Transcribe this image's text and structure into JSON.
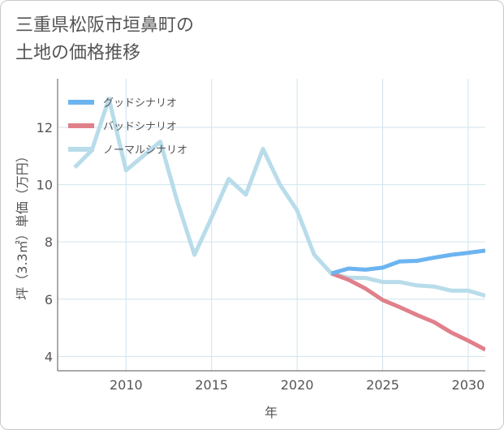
{
  "title": {
    "line1": "三重県松阪市垣鼻町の",
    "line2": "土地の価格推移"
  },
  "colors": {
    "good": "#6cb4f0",
    "bad": "#e0808a",
    "normal": "#b8dcea",
    "grid": "#cfe3ee",
    "axis": "#555555",
    "text": "#555555"
  },
  "chart_data": {
    "type": "line",
    "title": "三重県松阪市垣鼻町の土地の価格推移",
    "xlabel": "年",
    "ylabel": "坪（3.3㎡）単価（万円）",
    "xlim": [
      2006,
      2031
    ],
    "ylim": [
      3.5,
      13.7
    ],
    "xticks": [
      2010,
      2015,
      2020,
      2025,
      2030
    ],
    "yticks": [
      4,
      6,
      8,
      10,
      12
    ],
    "grid": true,
    "legend_position": "top-left",
    "series": [
      {
        "name": "グッドシナリオ",
        "color": "#6cb4f0",
        "x": [
          2022,
          2023,
          2024,
          2025,
          2026,
          2027,
          2028,
          2029,
          2030,
          2031
        ],
        "y": [
          6.9,
          7.07,
          7.03,
          7.1,
          7.32,
          7.34,
          7.45,
          7.55,
          7.62,
          7.7
        ]
      },
      {
        "name": "バッドシナリオ",
        "color": "#e0808a",
        "x": [
          2022,
          2023,
          2024,
          2025,
          2026,
          2027,
          2028,
          2029,
          2030,
          2031
        ],
        "y": [
          6.9,
          6.68,
          6.37,
          5.97,
          5.72,
          5.45,
          5.2,
          4.84,
          4.55,
          4.24
        ]
      },
      {
        "name": "ノーマルシナリオ",
        "color": "#b8dcea",
        "x": [
          2007,
          2008,
          2009,
          2010,
          2011,
          2012,
          2013,
          2014,
          2015,
          2016,
          2017,
          2018,
          2019,
          2020,
          2021,
          2022,
          2023,
          2024,
          2025,
          2026,
          2027,
          2028,
          2029,
          2030,
          2031
        ],
        "y": [
          10.6,
          11.2,
          13.0,
          10.5,
          11.0,
          11.5,
          9.4,
          7.55,
          8.85,
          10.2,
          9.65,
          11.25,
          10.0,
          9.1,
          7.55,
          6.9,
          6.75,
          6.74,
          6.6,
          6.6,
          6.48,
          6.44,
          6.3,
          6.3,
          6.12
        ]
      }
    ]
  }
}
